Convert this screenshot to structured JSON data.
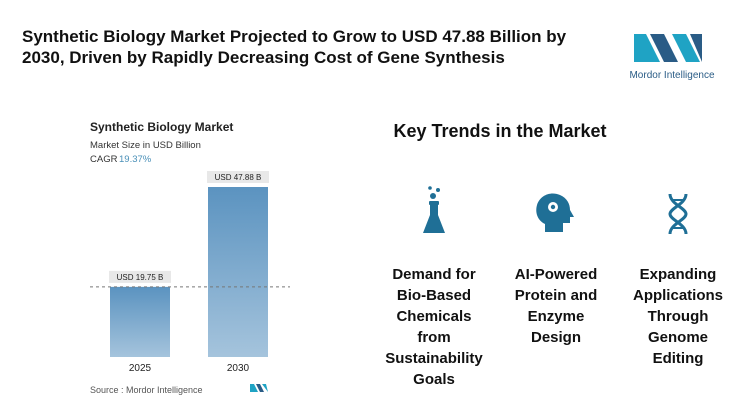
{
  "title": "Synthetic Biology Market Projected to Grow to USD 47.88 Billion by 2030, Driven by Rapidly Decreasing Cost of Gene Synthesis",
  "logo": "Mordor Intelligence",
  "chart_data": {
    "type": "bar",
    "title": "Synthetic Biology Market",
    "subtitle": "Market Size in USD Billion",
    "cagr_label": "CAGR",
    "cagr": "19.37%",
    "categories": [
      "2025",
      "2030"
    ],
    "values": [
      19.75,
      47.88
    ],
    "value_labels": [
      "USD 19.75 B",
      "USD 47.88 B"
    ],
    "color": "#5b93c0",
    "source": "Source : Mordor Intelligence"
  },
  "trends": {
    "title": "Key Trends in the Market",
    "items": [
      "Demand for Bio-Based Chemicals from Sustainability Goals",
      "AI-Powered Protein and Enzyme Design",
      "Expanding Applications Through Genome Editing"
    ]
  }
}
